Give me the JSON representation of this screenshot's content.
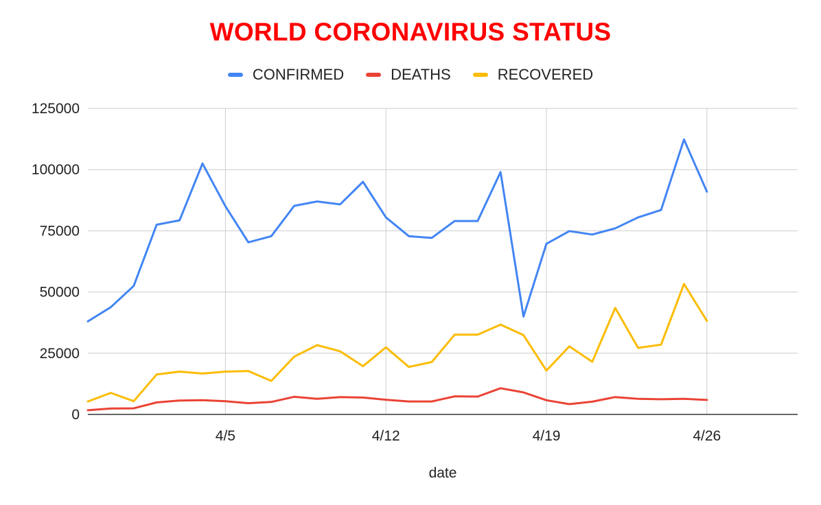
{
  "chart_data": {
    "type": "line",
    "title": "WORLD CORONAVIRUS STATUS",
    "title_color": "#ff0000",
    "xlabel": "date",
    "ylabel": "",
    "x": [
      "3/30",
      "3/31",
      "4/1",
      "4/2",
      "4/3",
      "4/4",
      "4/5",
      "4/6",
      "4/7",
      "4/8",
      "4/9",
      "4/10",
      "4/11",
      "4/12",
      "4/13",
      "4/14",
      "4/15",
      "4/16",
      "4/17",
      "4/18",
      "4/19",
      "4/20",
      "4/21",
      "4/22",
      "4/23",
      "4/24",
      "4/25",
      "4/26"
    ],
    "x_tick_labels": [
      "4/5",
      "4/12",
      "4/19",
      "4/26"
    ],
    "x_range": [
      "3/30",
      "4/30"
    ],
    "ylim": [
      0,
      125000
    ],
    "y_ticks": [
      0,
      25000,
      50000,
      75000,
      100000,
      125000
    ],
    "grid": true,
    "legend_position": "top",
    "series": [
      {
        "name": "CONFIRMED",
        "color": "#4285f4",
        "values": [
          38000,
          43800,
          52500,
          77500,
          79300,
          102500,
          85000,
          70300,
          72800,
          85200,
          87000,
          85800,
          95000,
          80500,
          72800,
          72100,
          79000,
          79000,
          99000,
          40000,
          69700,
          74900,
          73500,
          76000,
          80500,
          83500,
          112300,
          91000
        ]
      },
      {
        "name": "DEATHS",
        "color": "#ea4335",
        "values": [
          1700,
          2400,
          2500,
          4900,
          5700,
          5800,
          5400,
          4600,
          5100,
          7200,
          6400,
          7100,
          6900,
          6000,
          5300,
          5300,
          7400,
          7300,
          10700,
          9000,
          5800,
          4200,
          5200,
          7100,
          6400,
          6200,
          6400,
          5900
        ]
      },
      {
        "name": "RECOVERED",
        "color": "#fbbc04",
        "values": [
          5300,
          8800,
          5400,
          16300,
          17500,
          16700,
          17500,
          17700,
          13700,
          23600,
          28300,
          25800,
          19700,
          27400,
          19400,
          21400,
          32600,
          32600,
          36700,
          32400,
          17900,
          27800,
          21500,
          43500,
          27200,
          28500,
          53300,
          38200
        ]
      }
    ]
  }
}
